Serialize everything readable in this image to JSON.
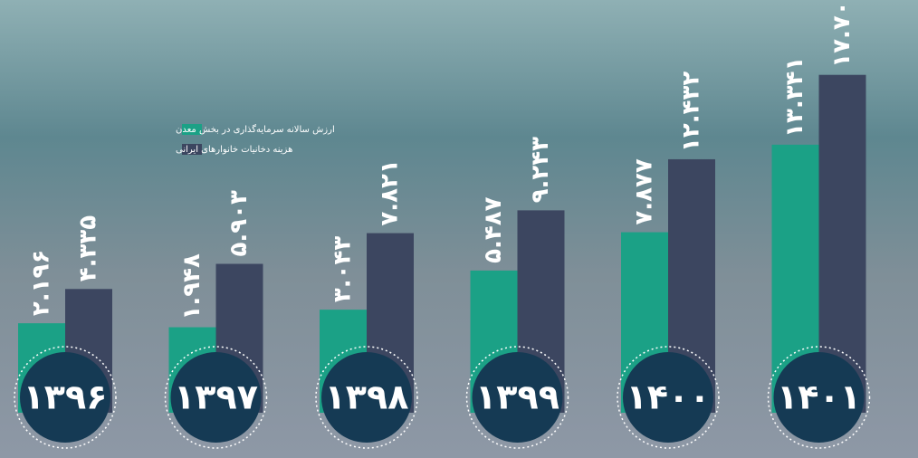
{
  "chart_data": {
    "type": "bar",
    "categories": [
      "۱۳۹۶",
      "۱۳۹۷",
      "۱۳۹۸",
      "۱۳۹۹",
      "۱۴۰۰",
      "۱۴۰۱"
    ],
    "series": [
      {
        "name": "ارزش سالانه سرمایه‌گذاری در بخش معدن",
        "color": "#1ba186",
        "values": [
          2.196,
          1.948,
          3.043,
          5.487,
          7.877,
          13.341
        ],
        "value_labels": [
          "۲.۱۹۶",
          "۱.۹۴۸",
          "۳.۰۴۳",
          "۵.۴۸۷",
          "۷.۸۷۷",
          "۱۳.۳۴۱"
        ]
      },
      {
        "name": "هزینه دخانیات خانوارهای ایرانی",
        "color": "#3c4660",
        "values": [
          4.335,
          5.903,
          7.821,
          9.243,
          12.432,
          17.7
        ],
        "value_labels": [
          "۴.۳۳۵",
          "۵.۹۰۳",
          "۷.۸۲۱",
          "۹.۲۴۳",
          "۱۲.۴۳۲",
          "۱۷.۷۰"
        ]
      }
    ],
    "legend": "top-left"
  }
}
